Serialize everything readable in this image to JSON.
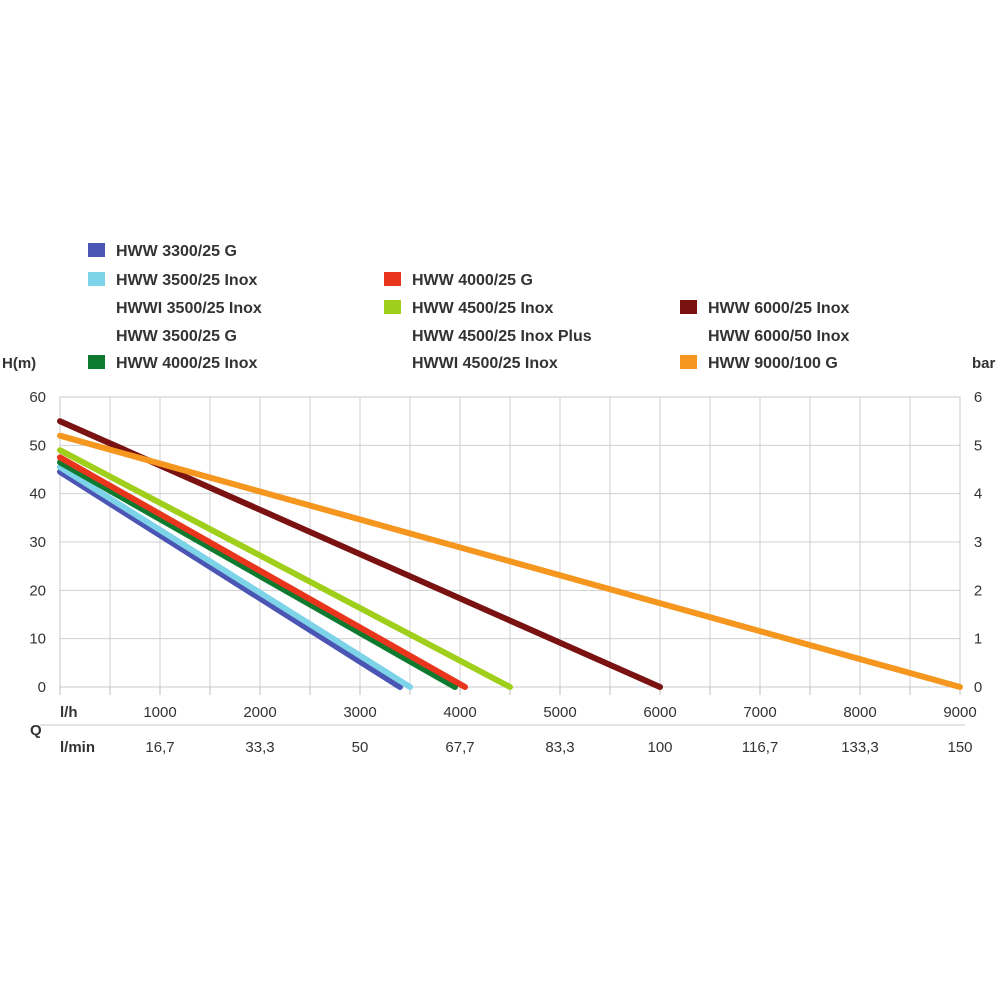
{
  "chart_data": {
    "type": "line",
    "xlabel": "l/h",
    "ylabel": "H(m)",
    "y2label": "bar",
    "qlabel": "Q",
    "x2label": "l/min",
    "xlim": [
      0,
      9000
    ],
    "ylim": [
      0,
      60
    ],
    "y2lim": [
      0,
      6
    ],
    "x_ticks": [
      1000,
      2000,
      3000,
      4000,
      5000,
      6000,
      7000,
      8000,
      9000
    ],
    "x2_ticks": [
      "16,7",
      "33,3",
      "50",
      "67,7",
      "83,3",
      "100",
      "116,7",
      "133,3",
      "150"
    ],
    "y_ticks": [
      0,
      10,
      20,
      30,
      40,
      50,
      60
    ],
    "y2_ticks": [
      0,
      1,
      2,
      3,
      4,
      5,
      6
    ],
    "grid": true,
    "legend_position": "top",
    "legend_groups": [
      {
        "color": "#4b55b3",
        "labels": [
          "HWW 3300/25 G"
        ]
      },
      {
        "color": "#7dd3e8",
        "labels": [
          "HWW 3500/25 Inox",
          "HWWI 3500/25 Inox",
          "HWW 3500/25 G"
        ]
      },
      {
        "color": "#0d7a30",
        "labels": [
          "HWW 4000/25 Inox"
        ]
      },
      {
        "color": "#e8351c",
        "labels": [
          "HWW 4000/25 G"
        ]
      },
      {
        "color": "#9fcf1a",
        "labels": [
          "HWW 4500/25 Inox",
          "HWW 4500/25 Inox Plus",
          "HWWI 4500/25 Inox"
        ]
      },
      {
        "color": "#7a1212",
        "labels": [
          "HWW 6000/25 Inox",
          "HWW 6000/50 Inox"
        ]
      },
      {
        "color": "#f5961e",
        "labels": [
          "HWW 9000/100 G"
        ]
      }
    ],
    "series": [
      {
        "name": "HWW 3300/25 G",
        "color": "#4b55b3",
        "x": [
          0,
          3400
        ],
        "y": [
          44.5,
          0
        ]
      },
      {
        "name": "HWW 3500/25 Inox",
        "color": "#7dd3e8",
        "x": [
          0,
          3500
        ],
        "y": [
          45.5,
          0
        ]
      },
      {
        "name": "HWW 4000/25 Inox",
        "color": "#0d7a30",
        "x": [
          0,
          3950
        ],
        "y": [
          46.5,
          0
        ]
      },
      {
        "name": "HWW 4000/25 G",
        "color": "#e8351c",
        "x": [
          0,
          4050
        ],
        "y": [
          47.5,
          0
        ]
      },
      {
        "name": "HWW 4500/25 Inox",
        "color": "#9fcf1a",
        "x": [
          0,
          4500
        ],
        "y": [
          49,
          0
        ]
      },
      {
        "name": "HWW 6000/25 Inox",
        "color": "#7a1212",
        "x": [
          0,
          6000
        ],
        "y": [
          55,
          0
        ]
      },
      {
        "name": "HWW 9000/100 G",
        "color": "#f5961e",
        "x": [
          0,
          9000
        ],
        "y": [
          52,
          0
        ]
      }
    ]
  }
}
